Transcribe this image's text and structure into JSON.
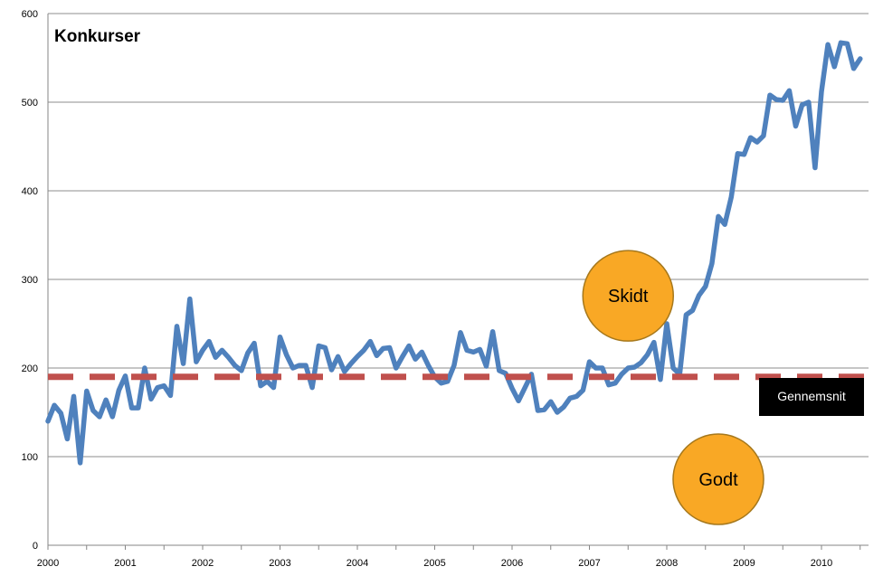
{
  "chart_data": {
    "type": "line",
    "title": "Konkurser",
    "xlabel": "",
    "ylabel": "",
    "ylim": [
      0,
      600
    ],
    "yticks": [
      0,
      100,
      200,
      300,
      400,
      500,
      600
    ],
    "xticks": [
      "2000",
      "2001",
      "2002",
      "2003",
      "2004",
      "2005",
      "2006",
      "2007",
      "2008",
      "2009",
      "2010"
    ],
    "grid": "horizontal",
    "series": [
      {
        "name": "",
        "color": "#4f81bd",
        "x_start": "2000-01",
        "frequency": "monthly",
        "values": [
          140,
          158,
          149,
          120,
          168,
          93,
          174,
          152,
          145,
          164,
          145,
          175,
          191,
          155,
          155,
          200,
          165,
          178,
          180,
          169,
          247,
          205,
          278,
          207,
          220,
          230,
          212,
          220,
          212,
          203,
          197,
          217,
          228,
          180,
          185,
          178,
          235,
          215,
          200,
          203,
          203,
          178,
          225,
          223,
          198,
          213,
          196,
          205,
          213,
          220,
          230,
          214,
          222,
          223,
          200,
          213,
          225,
          210,
          218,
          203,
          190,
          183,
          185,
          203,
          240,
          220,
          218,
          221,
          202,
          241,
          197,
          194,
          177,
          163,
          178,
          193,
          152,
          153,
          162,
          150,
          156,
          166,
          168,
          175,
          207,
          200,
          200,
          181,
          183,
          193,
          200,
          201,
          206,
          215,
          229,
          187,
          250,
          200,
          193,
          260,
          265,
          282,
          292,
          318,
          371,
          362,
          393,
          442,
          441,
          460,
          455,
          462,
          508,
          503,
          502,
          513,
          473,
          497,
          500,
          426,
          512,
          565,
          540,
          567,
          566,
          538,
          549
        ]
      },
      {
        "name": "Gennemsnit",
        "color": "#c0504d",
        "style": "dashed",
        "constant": 190
      }
    ],
    "annotations": [
      {
        "text": "Skidt",
        "date": "2007-07",
        "value": 308
      },
      {
        "text": "Godt",
        "date": "2008-09",
        "value": 101
      }
    ],
    "legend": {
      "label": "Gennemsnit",
      "placement": "right"
    }
  }
}
